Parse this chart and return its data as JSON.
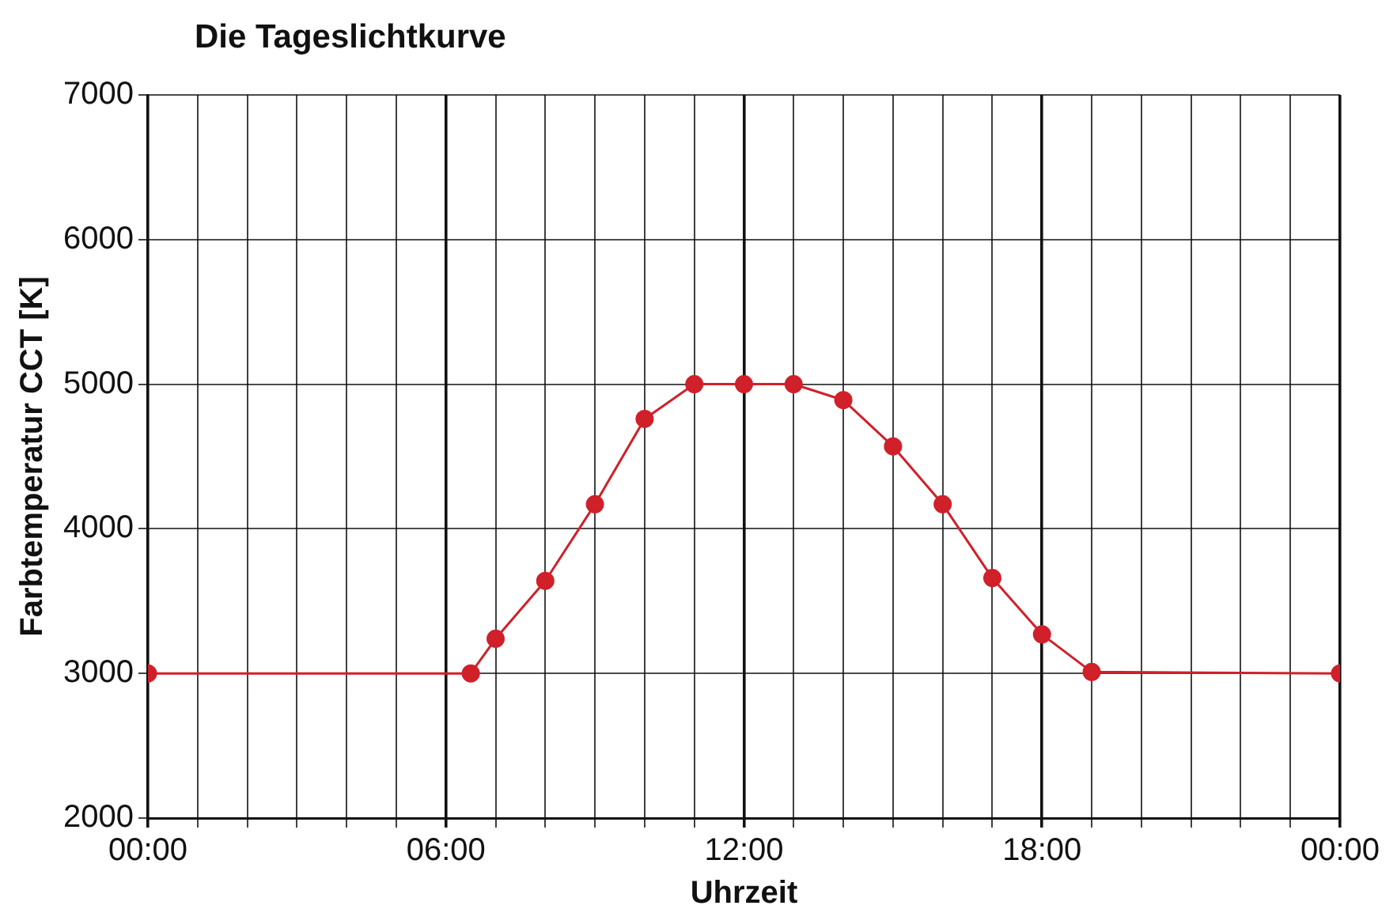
{
  "chart_data": {
    "type": "line",
    "title": "Die Tageslichtkurve",
    "xlabel": "Uhrzeit",
    "ylabel": "Farbtemperatur CCT [K]",
    "x": [
      0,
      6.5,
      7,
      8,
      9,
      10,
      11,
      12,
      13,
      14,
      15,
      16,
      17,
      18,
      19,
      24
    ],
    "series": [
      {
        "color": "#d0202a",
        "values": [
          3000,
          3000,
          3240,
          3640,
          4170,
          4760,
          5000,
          5000,
          5000,
          4890,
          4570,
          4170,
          3660,
          3270,
          3010,
          3000
        ]
      }
    ],
    "xlim": [
      0,
      24
    ],
    "xticks": [
      {
        "value": 0,
        "label": "00:00"
      },
      {
        "value": 1,
        "label": null
      },
      {
        "value": 2,
        "label": null
      },
      {
        "value": 3,
        "label": null
      },
      {
        "value": 4,
        "label": null
      },
      {
        "value": 5,
        "label": null
      },
      {
        "value": 6,
        "label": "06:00"
      },
      {
        "value": 7,
        "label": null
      },
      {
        "value": 8,
        "label": null
      },
      {
        "value": 9,
        "label": null
      },
      {
        "value": 10,
        "label": null
      },
      {
        "value": 11,
        "label": null
      },
      {
        "value": 12,
        "label": "12:00"
      },
      {
        "value": 13,
        "label": null
      },
      {
        "value": 14,
        "label": null
      },
      {
        "value": 15,
        "label": null
      },
      {
        "value": 16,
        "label": null
      },
      {
        "value": 17,
        "label": null
      },
      {
        "value": 18,
        "label": "18:00"
      },
      {
        "value": 19,
        "label": null
      },
      {
        "value": 20,
        "label": null
      },
      {
        "value": 21,
        "label": null
      },
      {
        "value": 22,
        "label": null
      },
      {
        "value": 23,
        "label": null
      },
      {
        "value": 24,
        "label": "00:00"
      }
    ],
    "ylim": [
      2000,
      7000
    ],
    "yticks": [
      2000,
      3000,
      4000,
      5000,
      6000,
      7000
    ],
    "grid": true,
    "legend": false,
    "marker": "circle",
    "line_style": "solid"
  }
}
